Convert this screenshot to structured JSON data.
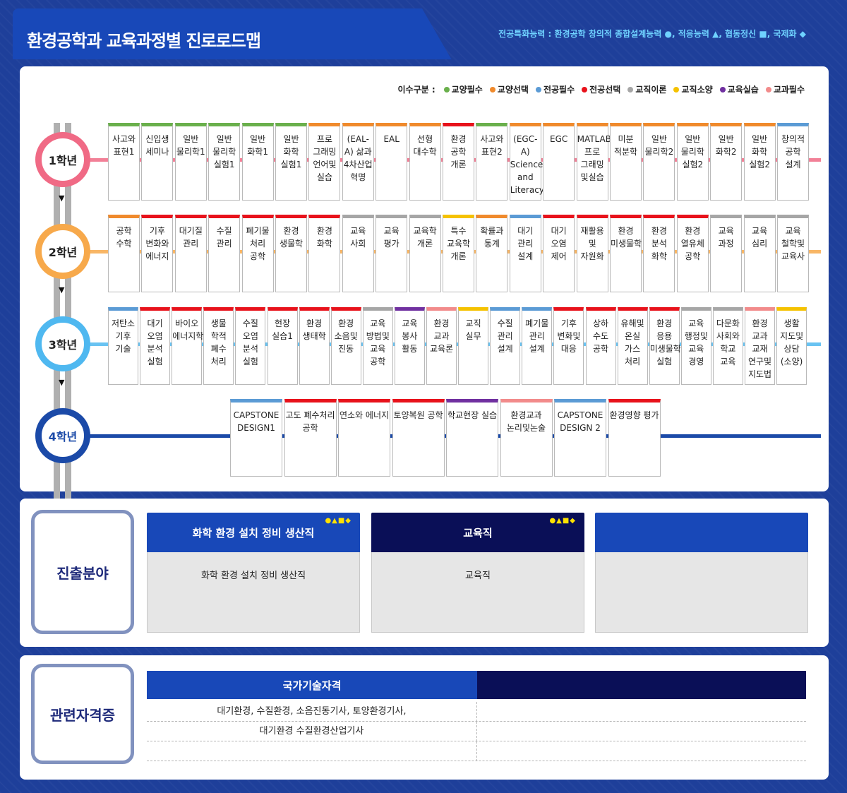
{
  "header": {
    "title": "환경공학과 교육과정별 진로로드맵",
    "competency_legend": "전공특화능력 : 환경공학 창의적 종합설계능력 ●, 적응능력 ▲, 협동정신 ■, 국제화 ◆"
  },
  "course_types": {
    "label": "이수구분 :",
    "items": [
      {
        "name": "교양필수",
        "color": "#6ab04c"
      },
      {
        "name": "교양선택",
        "color": "#f08a2c"
      },
      {
        "name": "전공필수",
        "color": "#5b9bd5"
      },
      {
        "name": "전공선택",
        "color": "#e8121b"
      },
      {
        "name": "교직이론",
        "color": "#a6a6a6"
      },
      {
        "name": "교직소양",
        "color": "#f5c200"
      },
      {
        "name": "교육실습",
        "color": "#7030a0"
      },
      {
        "name": "교과필수",
        "color": "#f28b8b"
      }
    ]
  },
  "years": [
    {
      "label": "1학년",
      "color": "#f06a85",
      "courses": [
        {
          "name": "사고와 표현1",
          "type": "교양필수"
        },
        {
          "name": "신입생 세미나",
          "type": "교양필수"
        },
        {
          "name": "일반 물리학1",
          "type": "교양필수"
        },
        {
          "name": "일반 물리학 실험1",
          "type": "교양필수"
        },
        {
          "name": "일반 화학1",
          "type": "교양필수"
        },
        {
          "name": "일반 화학 실험1",
          "type": "교양필수"
        },
        {
          "name": "프로 그래밍 언어및 실습",
          "type": "교양선택"
        },
        {
          "name": "(EAL-A) 삶과 4차산업 혁명",
          "type": "교양선택"
        },
        {
          "name": "EAL",
          "type": "교양선택"
        },
        {
          "name": "선형 대수학",
          "type": "교양선택"
        },
        {
          "name": "환경 공학 개론",
          "type": "전공선택"
        },
        {
          "name": "사고와 표현2",
          "type": "교양필수"
        },
        {
          "name": "(EGC-A) Science and Literacy",
          "type": "교양선택"
        },
        {
          "name": "EGC",
          "type": "교양선택"
        },
        {
          "name": "MATLAB 프로 그래밍 및실습",
          "type": "교양선택"
        },
        {
          "name": "미분 적분학",
          "type": "교양선택"
        },
        {
          "name": "일반 물리학2",
          "type": "교양선택"
        },
        {
          "name": "일반 물리학 실험2",
          "type": "교양선택"
        },
        {
          "name": "일반 화학2",
          "type": "교양선택"
        },
        {
          "name": "일반 화학 실험2",
          "type": "교양선택"
        },
        {
          "name": "창의적 공학 설계",
          "type": "전공필수"
        }
      ]
    },
    {
      "label": "2학년",
      "color": "#f7a94b",
      "courses": [
        {
          "name": "공학 수학",
          "type": "교양선택"
        },
        {
          "name": "기후 변화와 에너지",
          "type": "전공선택"
        },
        {
          "name": "대기질 관리",
          "type": "전공선택"
        },
        {
          "name": "수질 관리",
          "type": "전공선택"
        },
        {
          "name": "폐기물 처리 공학",
          "type": "전공선택"
        },
        {
          "name": "환경 생물학",
          "type": "전공선택"
        },
        {
          "name": "환경 화학",
          "type": "전공선택"
        },
        {
          "name": "교육 사회",
          "type": "교직이론"
        },
        {
          "name": "교육 평가",
          "type": "교직이론"
        },
        {
          "name": "교육학 개론",
          "type": "교직이론"
        },
        {
          "name": "특수 교육학 개론",
          "type": "교직소양"
        },
        {
          "name": "확률과 통계",
          "type": "교양선택"
        },
        {
          "name": "대기 관리 설계",
          "type": "전공필수"
        },
        {
          "name": "대기 오염 제어",
          "type": "전공선택"
        },
        {
          "name": "재활용 및 자원화",
          "type": "전공선택"
        },
        {
          "name": "환경 미생물학",
          "type": "전공선택"
        },
        {
          "name": "환경 분석 화학",
          "type": "전공선택"
        },
        {
          "name": "환경 열유체 공학",
          "type": "전공선택"
        },
        {
          "name": "교육 과정",
          "type": "교직이론"
        },
        {
          "name": "교육 심리",
          "type": "교직이론"
        },
        {
          "name": "교육 철학및 교육사",
          "type": "교직이론"
        }
      ]
    },
    {
      "label": "3학년",
      "color": "#4fb8f0",
      "courses": [
        {
          "name": "저탄소 기후 기술",
          "type": "전공필수"
        },
        {
          "name": "대기 오염 분석 실험",
          "type": "전공선택"
        },
        {
          "name": "바이오 에너지학",
          "type": "전공선택"
        },
        {
          "name": "생물 학적 폐수 처리",
          "type": "전공선택"
        },
        {
          "name": "수질 오염 분석 실험",
          "type": "전공선택"
        },
        {
          "name": "현장 실습1",
          "type": "전공선택"
        },
        {
          "name": "환경 생태학",
          "type": "전공선택"
        },
        {
          "name": "환경 소음및 진동",
          "type": "전공선택"
        },
        {
          "name": "교육 방법및 교육 공학",
          "type": "교직이론"
        },
        {
          "name": "교육 봉사 활동",
          "type": "교육실습"
        },
        {
          "name": "환경 교과 교육론",
          "type": "교과필수"
        },
        {
          "name": "교직 실무",
          "type": "교직소양"
        },
        {
          "name": "수질 관리 설계",
          "type": "전공필수"
        },
        {
          "name": "폐기물 관리 설계",
          "type": "전공필수"
        },
        {
          "name": "기후 변화및 대응",
          "type": "전공선택"
        },
        {
          "name": "상하 수도 공학",
          "type": "전공선택"
        },
        {
          "name": "유해및 온실 가스 처리",
          "type": "전공선택"
        },
        {
          "name": "환경 응용 미생물학 실험",
          "type": "전공선택"
        },
        {
          "name": "교육 행정및 교육 경영",
          "type": "교직이론"
        },
        {
          "name": "다문화 사회와 학교 교육",
          "type": "교직이론"
        },
        {
          "name": "환경 교과 교재 연구및 지도법",
          "type": "교과필수"
        },
        {
          "name": "생활 지도및 상담 (소양)",
          "type": "교직소양"
        }
      ]
    },
    {
      "label": "4학년",
      "color": "#1b4aa8",
      "courses": [
        {
          "name": "CAPSTONE DESIGN1",
          "type": "전공필수"
        },
        {
          "name": "고도 폐수처리 공학",
          "type": "전공선택"
        },
        {
          "name": "연소와 에너지",
          "type": "전공선택"
        },
        {
          "name": "토양복원 공학",
          "type": "전공선택"
        },
        {
          "name": "학교현장 실습",
          "type": "교육실습"
        },
        {
          "name": "환경교과 논리및논술",
          "type": "교과필수"
        },
        {
          "name": "CAPSTONE DESIGN 2",
          "type": "전공필수"
        },
        {
          "name": "환경영향 평가",
          "type": "전공선택"
        }
      ]
    }
  ],
  "career": {
    "label": "진출분야",
    "jobs": [
      {
        "title": "화학 환경 설치 정비 생산직",
        "body": "화학 환경 설치 정비 생산직",
        "symbols": "●▲■◆",
        "head_color": "#1848b8"
      },
      {
        "title": "교육직",
        "body": "교육직",
        "symbols": "●▲■◆",
        "head_color": "#0a0f57"
      },
      {
        "title": "",
        "body": "",
        "symbols": "",
        "head_color": "#1848b8"
      }
    ]
  },
  "certs": {
    "label": "관련자격증",
    "header": "국가기술자격",
    "rows": [
      "대기환경, 수질환경, 소음진동기사, 토양환경기사,",
      "대기환경 수질환경산업기사",
      ""
    ]
  }
}
